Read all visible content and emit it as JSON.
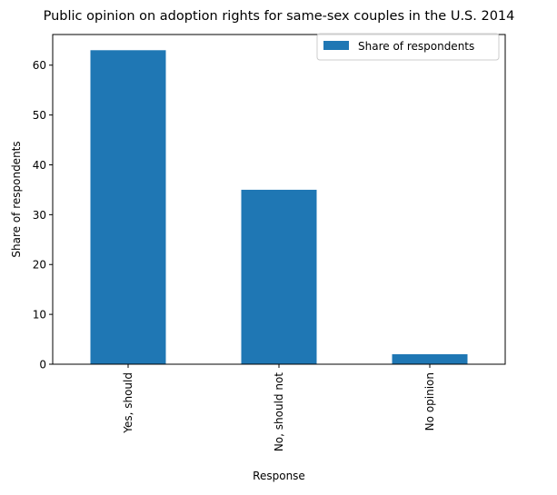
{
  "chart_data": {
    "type": "bar",
    "title": "Public opinion on adoption rights for same-sex couples in the U.S. 2014",
    "xlabel": "Response",
    "ylabel": "Share of respondents",
    "categories": [
      "Yes, should",
      "No, should not",
      "No opinion"
    ],
    "series": [
      {
        "name": "Share of respondents",
        "values": [
          63,
          35,
          2
        ],
        "color": "#1f77b4"
      }
    ],
    "ylim": [
      0,
      66.15
    ],
    "yticks": [
      0,
      10,
      20,
      30,
      40,
      50,
      60
    ],
    "grid": false,
    "legend": "top-right"
  }
}
